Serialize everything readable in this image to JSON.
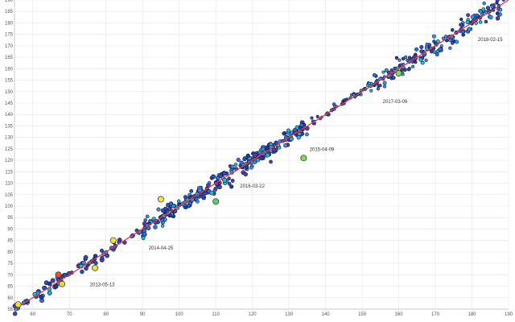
{
  "chart_data": {
    "type": "scatter",
    "title": "",
    "xlabel": "",
    "ylabel": "",
    "xlim": [
      55,
      190
    ],
    "ylim": [
      55,
      190
    ],
    "grid": true,
    "x_ticks": [
      60,
      70,
      80,
      90,
      100,
      110,
      120,
      130,
      140,
      150,
      160,
      170,
      180,
      190
    ],
    "y_ticks": [
      55,
      60,
      65,
      70,
      75,
      80,
      85,
      90,
      95,
      100,
      105,
      110,
      115,
      120,
      125,
      130,
      135,
      140,
      145,
      150,
      155,
      160,
      165,
      170,
      175,
      180,
      185,
      190
    ],
    "fit_line": {
      "x": [
        55,
        190
      ],
      "y": [
        55,
        190
      ],
      "color": "#e8383d"
    },
    "annotations": [
      {
        "text": "2013-05-13",
        "x": 79,
        "y": 65
      },
      {
        "text": "2014-04-25",
        "x": 95,
        "y": 81
      },
      {
        "text": "2016-03-22",
        "x": 120,
        "y": 108
      },
      {
        "text": "2015-04-09",
        "x": 139,
        "y": 124
      },
      {
        "text": "2017-03-06",
        "x": 159,
        "y": 145
      },
      {
        "text": "2018-02-15",
        "x": 185,
        "y": 172
      }
    ],
    "highlights": [
      {
        "x": 56,
        "y": 57,
        "color": "#f5e33a"
      },
      {
        "x": 67,
        "y": 70,
        "color": "#e8513a"
      },
      {
        "x": 68,
        "y": 66,
        "color": "#f0d43a"
      },
      {
        "x": 77,
        "y": 73,
        "color": "#f0e03a"
      },
      {
        "x": 82,
        "y": 85,
        "color": "#f5e33a"
      },
      {
        "x": 95,
        "y": 103,
        "color": "#f5e33a"
      },
      {
        "x": 110,
        "y": 102,
        "color": "#56d36b"
      },
      {
        "x": 134,
        "y": 121,
        "color": "#7ddc5e"
      },
      {
        "x": 160,
        "y": 158,
        "color": "#7ddc5e"
      }
    ],
    "segments": [
      {
        "x0": 55,
        "x1": 82,
        "n": 70,
        "spread": 1.6,
        "r": 2.4
      },
      {
        "x0": 82,
        "x1": 90,
        "n": 12,
        "spread": 1.2,
        "r": 2.4
      },
      {
        "x0": 90,
        "x1": 135,
        "n": 260,
        "spread": 2.0,
        "r": 2.3
      },
      {
        "x0": 135,
        "x1": 150,
        "n": 40,
        "spread": 0.9,
        "r": 1.7
      },
      {
        "x0": 150,
        "x1": 165,
        "n": 70,
        "spread": 2.0,
        "r": 2.0
      },
      {
        "x0": 165,
        "x1": 189,
        "n": 110,
        "spread": 2.3,
        "r": 2.1
      }
    ],
    "palette": [
      "#1f3a93",
      "#2b4fb5",
      "#3a6fd0",
      "#4a89dd",
      "#2a9fd6",
      "#22b8cf",
      "#4c3fa8",
      "#5e3c99"
    ]
  }
}
